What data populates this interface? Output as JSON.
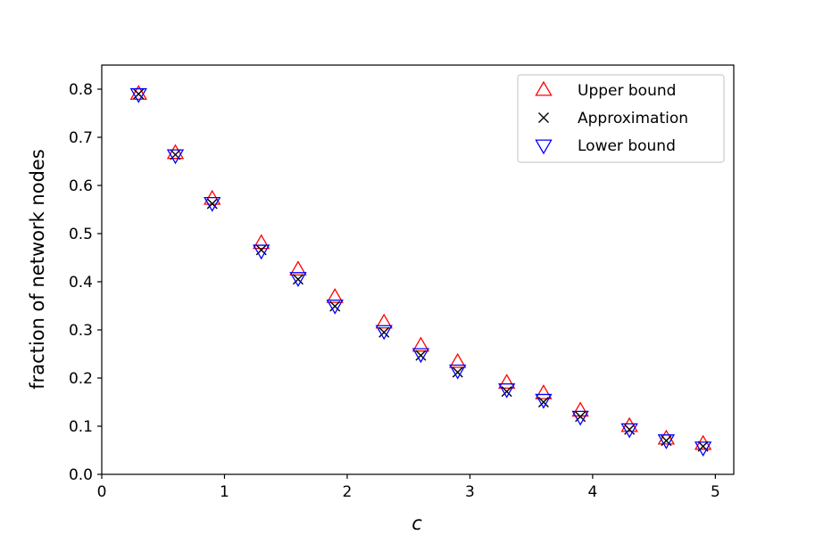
{
  "chart_data": {
    "type": "scatter",
    "title": "",
    "xlabel": "c",
    "ylabel": "fraction of network nodes",
    "xlim": [
      0,
      5.15
    ],
    "ylim": [
      0,
      0.85
    ],
    "xticks": [
      "0",
      "1",
      "2",
      "3",
      "4",
      "5"
    ],
    "yticks": [
      "0.0",
      "0.1",
      "0.2",
      "0.3",
      "0.4",
      "0.5",
      "0.6",
      "0.7",
      "0.8"
    ],
    "grid": false,
    "legend_position": "top-right",
    "x": [
      0.3,
      0.6,
      0.9,
      1.3,
      1.6,
      1.9,
      2.3,
      2.6,
      2.9,
      3.3,
      3.6,
      3.9,
      4.3,
      4.6,
      4.9
    ],
    "series": [
      {
        "name": "Upper bound",
        "marker": "triangle-up",
        "color": "#ff0000",
        "values": [
          0.79,
          0.667,
          0.572,
          0.48,
          0.425,
          0.368,
          0.315,
          0.267,
          0.233,
          0.19,
          0.168,
          0.132,
          0.1,
          0.074,
          0.063
        ]
      },
      {
        "name": "Approximation",
        "marker": "x",
        "color": "#000000",
        "values": [
          0.79,
          0.664,
          0.562,
          0.466,
          0.405,
          0.349,
          0.295,
          0.247,
          0.212,
          0.172,
          0.15,
          0.12,
          0.093,
          0.07,
          0.058
        ]
      },
      {
        "name": "Lower bound",
        "marker": "triangle-down",
        "color": "#0000ff",
        "values": [
          0.79,
          0.663,
          0.564,
          0.465,
          0.408,
          0.351,
          0.298,
          0.25,
          0.216,
          0.177,
          0.155,
          0.12,
          0.094,
          0.071,
          0.056
        ]
      }
    ]
  }
}
